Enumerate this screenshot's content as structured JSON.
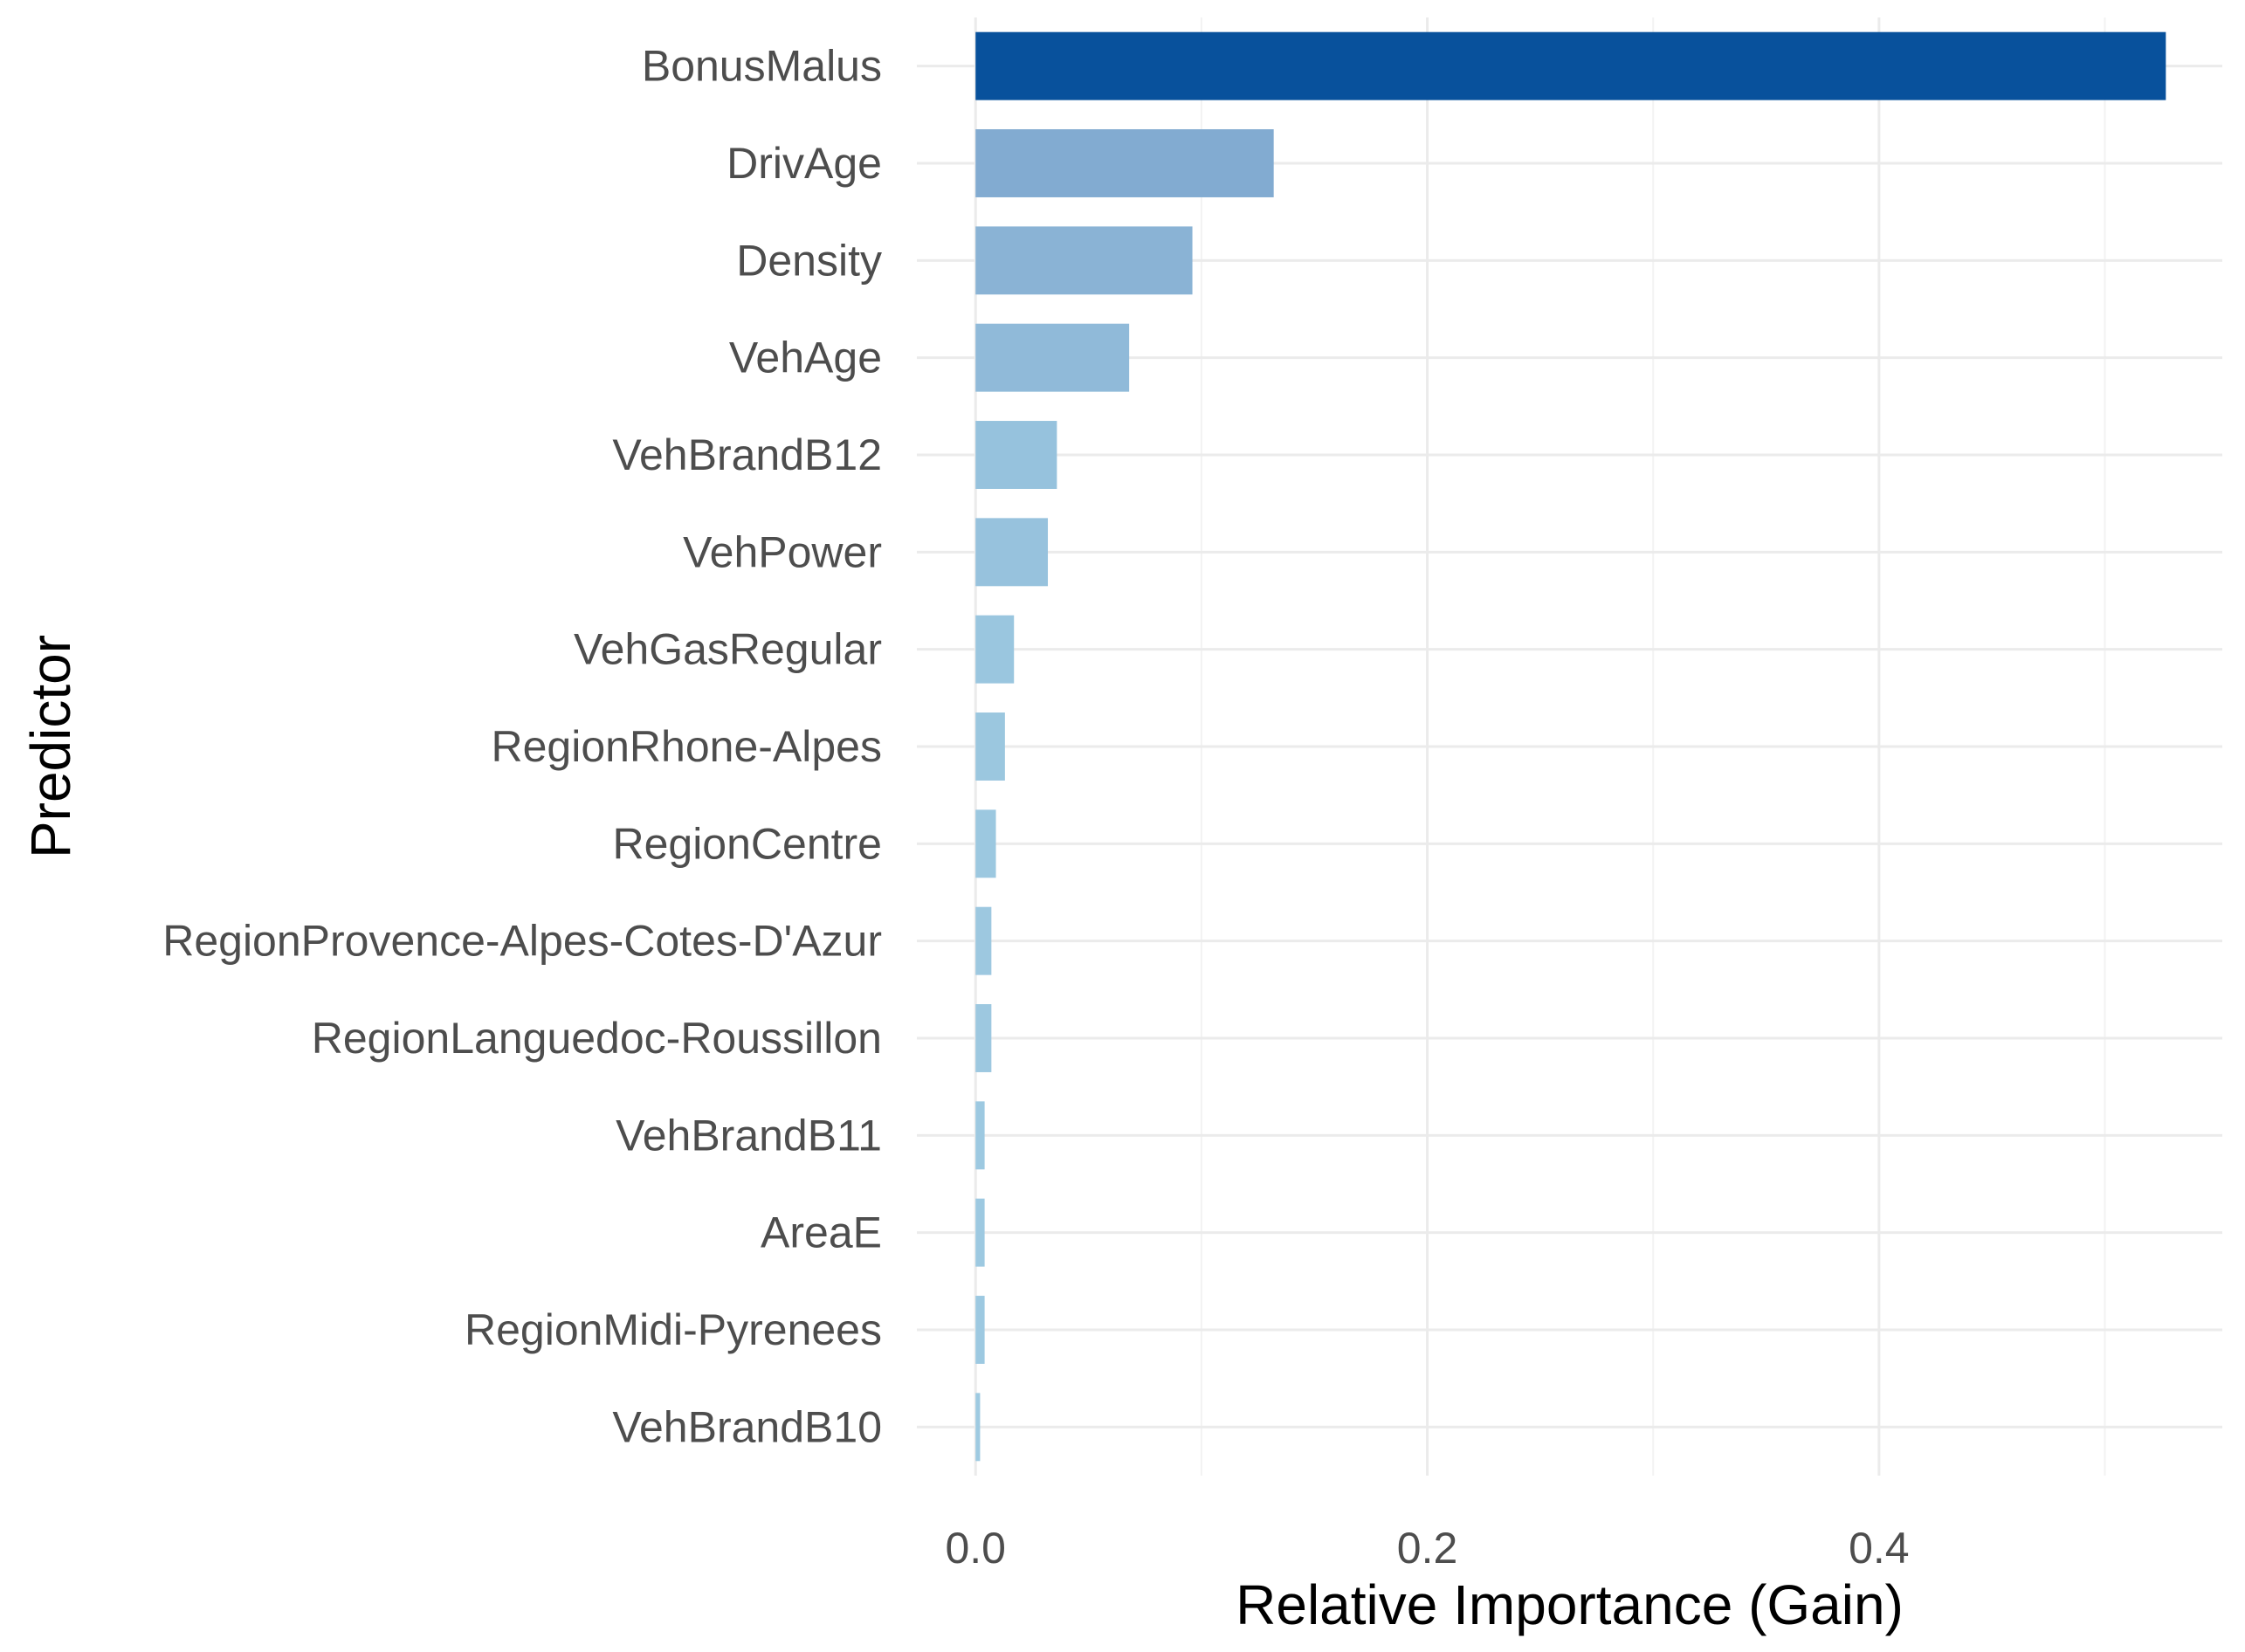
{
  "chart_data": {
    "type": "bar",
    "orientation": "horizontal",
    "categories": [
      "BonusMalus",
      "DrivAge",
      "Density",
      "VehAge",
      "VehBrandB12",
      "VehPower",
      "VehGasRegular",
      "RegionRhone-Alpes",
      "RegionCentre",
      "RegionProvence-Alpes-Cotes-D'Azur",
      "RegionLanguedoc-Roussillon",
      "VehBrandB11",
      "AreaE",
      "RegionMidi-Pyrenees",
      "VehBrandB10"
    ],
    "values": [
      0.527,
      0.132,
      0.096,
      0.068,
      0.036,
      0.032,
      0.017,
      0.013,
      0.009,
      0.007,
      0.007,
      0.004,
      0.004,
      0.004,
      0.002
    ],
    "title": "",
    "xlabel": "Relative Importance (Gain)",
    "ylabel": "Predictor",
    "xlim": [
      -0.026,
      0.552
    ],
    "xticks": [
      0.0,
      0.2,
      0.4
    ],
    "xtick_labels": [
      "0.0",
      "0.2",
      "0.4"
    ],
    "grid": true,
    "legend": "none",
    "colors": {
      "fill_high": "#08519c",
      "fill_mid": "#82abd1",
      "fill_low": "#9ecae1",
      "grid": "#ebebeb",
      "text": "#4d4d4d",
      "background": "#ffffff"
    }
  }
}
